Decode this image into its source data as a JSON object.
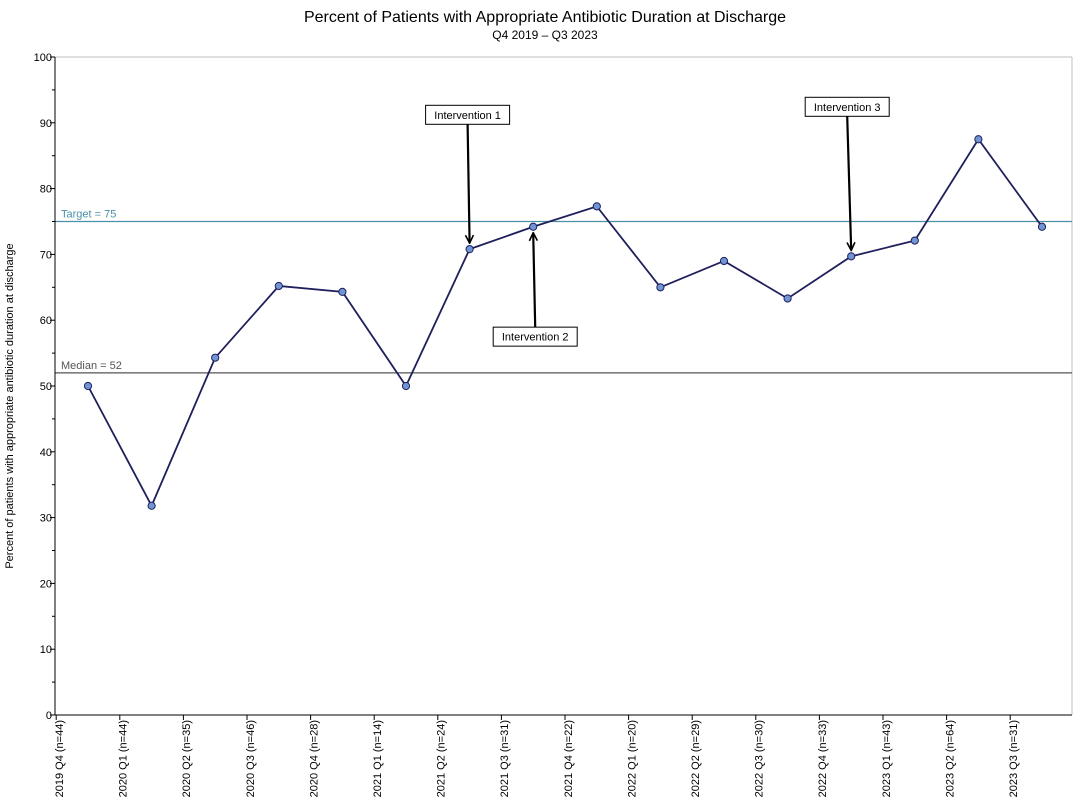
{
  "chart_data": {
    "type": "line",
    "title": "Percent of Patients with Appropriate Antibiotic Duration at Discharge",
    "subtitle": "Q4 2019 – Q3 2023",
    "ylabel": "Percent of patients with appropriate antibiotic duration at discharge",
    "xlabel": "",
    "ylim": [
      0,
      100
    ],
    "yticks": [
      0,
      10,
      20,
      30,
      40,
      50,
      60,
      70,
      80,
      90,
      100
    ],
    "grid": false,
    "categories": [
      "2019 Q4 (n=44)",
      "2020 Q1 (n=44)",
      "2020 Q2 (n=35)",
      "2020 Q3 (n=46)",
      "2020 Q4 (n=28)",
      "2021 Q1 (n=14)",
      "2021 Q2 (n=24)",
      "2021 Q3 (n=31)",
      "2021 Q4 (n=22)",
      "2022 Q1 (n=20)",
      "2022 Q2 (n=29)",
      "2022 Q3 (n=30)",
      "2022 Q4 (n=33)",
      "2023 Q1 (n=43)",
      "2023 Q2 (n=64)",
      "2023 Q3 (n=31)"
    ],
    "series": [
      {
        "values": [
          50,
          31.8,
          54.3,
          65.2,
          64.3,
          50,
          70.8,
          74.2,
          77.3,
          65,
          69,
          63.3,
          69.7,
          72.1,
          87.5,
          74.2
        ],
        "color": "#1f1f5c",
        "marker_color": "#6f96d3"
      }
    ],
    "reference_lines": [
      {
        "label": "Target = 75",
        "value": 75,
        "color": "#4a8fa8"
      },
      {
        "label": "Median = 52",
        "value": 52,
        "color": "#555555"
      }
    ],
    "annotations": [
      {
        "text": "Intervention 1",
        "point_index": 6,
        "direction": "down"
      },
      {
        "text": "Intervention 2",
        "point_index": 7,
        "direction": "up"
      },
      {
        "text": "Intervention 3",
        "point_index": 12,
        "direction": "down"
      }
    ]
  }
}
